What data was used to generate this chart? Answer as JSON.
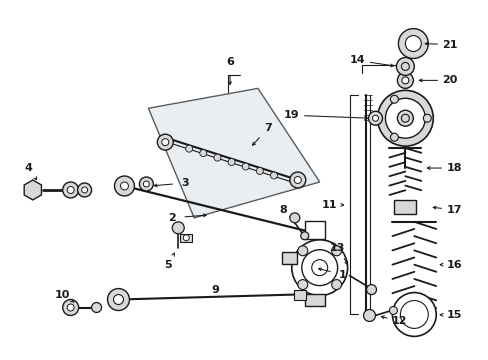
{
  "background_color": "#ffffff",
  "fig_width": 4.89,
  "fig_height": 3.6,
  "dpi": 100,
  "line_color": "#1a1a1a",
  "fill_light": "#d8d8d8",
  "fill_shaded": "#e0e8ef"
}
